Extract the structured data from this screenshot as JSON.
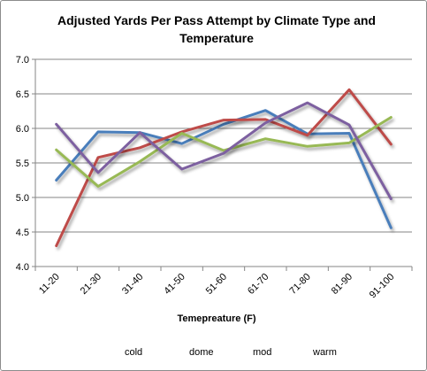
{
  "chart_data": {
    "type": "line",
    "title_line1": "Adjusted Yards Per Pass Attempt by Climate Type and",
    "title_line2": "Temperature",
    "xlabel": "Temepreature (F)",
    "ylabel": "",
    "categories": [
      "11-20",
      "21-30",
      "31-40",
      "41-50",
      "51-60",
      "61-70",
      "71-80",
      "81-90",
      "91-100"
    ],
    "ylim": [
      4.0,
      7.0
    ],
    "yticks": [
      "4.0",
      "4.5",
      "5.0",
      "5.5",
      "6.0",
      "6.5",
      "7.0"
    ],
    "grid": "horizontal",
    "legend": "bottom",
    "series": [
      {
        "name": "cold",
        "color": "#4a7ebb",
        "values": [
          5.25,
          5.95,
          5.94,
          5.78,
          6.06,
          6.26,
          5.92,
          5.93,
          4.56
        ]
      },
      {
        "name": "dome",
        "color": "#be4b48",
        "values": [
          4.3,
          5.58,
          5.72,
          5.95,
          6.12,
          6.13,
          5.9,
          6.56,
          5.77
        ]
      },
      {
        "name": "mod",
        "color": "#98b954",
        "values": [
          5.69,
          5.16,
          5.52,
          5.93,
          5.68,
          5.85,
          5.74,
          5.79,
          6.16
        ]
      },
      {
        "name": "warm",
        "color": "#7d60a0",
        "values": [
          6.06,
          5.36,
          5.94,
          5.41,
          5.64,
          6.08,
          6.37,
          6.05,
          4.98
        ]
      }
    ]
  }
}
